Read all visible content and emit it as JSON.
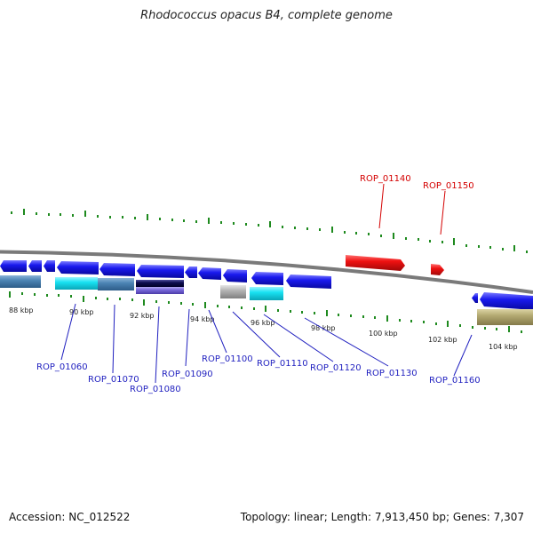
{
  "title": "Rhodococcus opacus B4, complete genome",
  "footer": {
    "accession_label": "Accession:",
    "accession": "NC_012522",
    "topology_label": "Topology:",
    "topology": "linear",
    "length_label": "Length:",
    "length": "7,913,450 bp",
    "genes_label": "Genes:",
    "genes": "7,307"
  },
  "colors": {
    "blue_gene": "#1a1aee",
    "highlight_gene": "#ee1111",
    "highlight_label": "#d40000",
    "label_blue": "#1f1fbf",
    "tick_green": "#1e8a1e",
    "backbone": "#7a7a7a",
    "steelblue": "#4c84b4",
    "cyan": "#18e2f2",
    "navy": "#0c0c50",
    "purple": "#7a6adc",
    "gray": "#b4b4b4",
    "olive": "#b4aa72"
  },
  "scale_ticks": [
    "88 kbp",
    "90 kbp",
    "92 kbp",
    "94 kbp",
    "96 kbp",
    "98 kbp",
    "100 kbp",
    "102 kbp",
    "104 kbp"
  ],
  "gene_labels": [
    {
      "id": "ROP_01060",
      "color": "blue"
    },
    {
      "id": "ROP_01070",
      "color": "blue"
    },
    {
      "id": "ROP_01080",
      "color": "blue"
    },
    {
      "id": "ROP_01090",
      "color": "blue"
    },
    {
      "id": "ROP_01100",
      "color": "blue"
    },
    {
      "id": "ROP_01110",
      "color": "blue"
    },
    {
      "id": "ROP_01120",
      "color": "blue"
    },
    {
      "id": "ROP_01130",
      "color": "blue"
    },
    {
      "id": "ROP_01140",
      "color": "red"
    },
    {
      "id": "ROP_01150",
      "color": "red"
    },
    {
      "id": "ROP_01160",
      "color": "blue"
    }
  ]
}
